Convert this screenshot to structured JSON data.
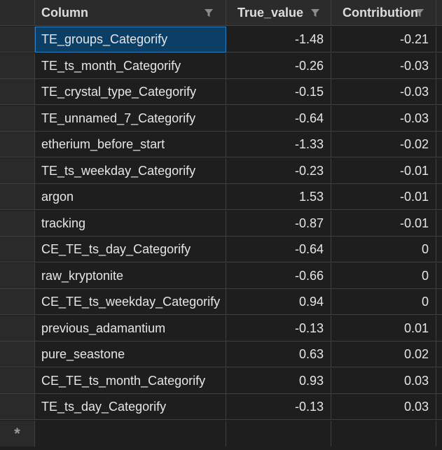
{
  "columns": {
    "column": "Column",
    "true_value": "True_value",
    "contribution": "Contribution"
  },
  "icons": {
    "filter": "filter-funnel-icon",
    "new_row": "asterisk-new-row-icon"
  },
  "new_row_marker": "*",
  "colors": {
    "background": "#1e1e1e",
    "header": "#2b2b2b",
    "selection": "#0b3f66",
    "selection_border": "#2f7fc0",
    "grid_lines": "#3f3f3f",
    "text": "#e6e6e6"
  },
  "rows": [
    {
      "column": "TE_groups_Categorify",
      "true_value": "-1.48",
      "contribution": "-0.21",
      "selected": true
    },
    {
      "column": "TE_ts_month_Categorify",
      "true_value": "-0.26",
      "contribution": "-0.03"
    },
    {
      "column": "TE_crystal_type_Categorify",
      "true_value": "-0.15",
      "contribution": "-0.03"
    },
    {
      "column": "TE_unnamed_7_Categorify",
      "true_value": "-0.64",
      "contribution": "-0.03"
    },
    {
      "column": "etherium_before_start",
      "true_value": "-1.33",
      "contribution": "-0.02"
    },
    {
      "column": "TE_ts_weekday_Categorify",
      "true_value": "-0.23",
      "contribution": "-0.01"
    },
    {
      "column": "argon",
      "true_value": "1.53",
      "contribution": "-0.01"
    },
    {
      "column": "tracking",
      "true_value": "-0.87",
      "contribution": "-0.01"
    },
    {
      "column": "CE_TE_ts_day_Categorify",
      "true_value": "-0.64",
      "contribution": "0"
    },
    {
      "column": "raw_kryptonite",
      "true_value": "-0.66",
      "contribution": "0"
    },
    {
      "column": "CE_TE_ts_weekday_Categorify",
      "true_value": "0.94",
      "contribution": "0"
    },
    {
      "column": "previous_adamantium",
      "true_value": "-0.13",
      "contribution": "0.01"
    },
    {
      "column": "pure_seastone",
      "true_value": "0.63",
      "contribution": "0.02"
    },
    {
      "column": "CE_TE_ts_month_Categorify",
      "true_value": "0.93",
      "contribution": "0.03"
    },
    {
      "column": "TE_ts_day_Categorify",
      "true_value": "-0.13",
      "contribution": "0.03"
    }
  ]
}
